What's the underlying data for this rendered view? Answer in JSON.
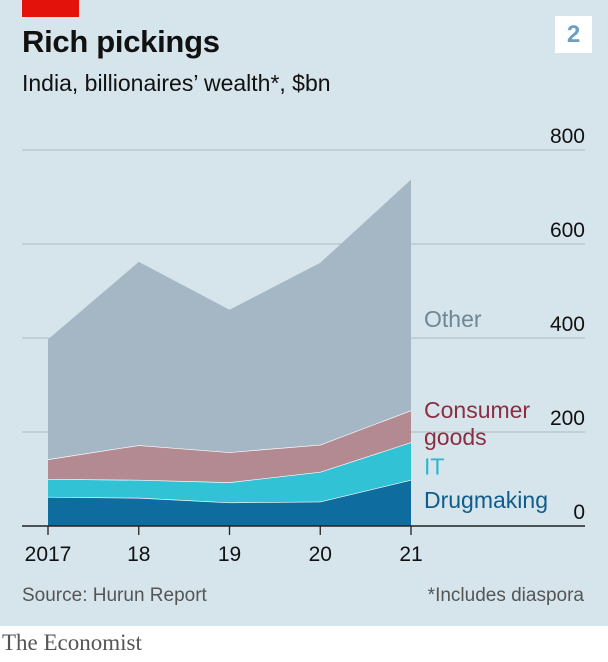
{
  "header": {
    "title": "Rich pickings",
    "subtitle": "India, billionaires’ wealth*, $bn",
    "chart_number": "2"
  },
  "footer": {
    "source": "Source: Hurun Report",
    "footnote": "*Includes diaspora",
    "brand": "The Economist"
  },
  "colors": {
    "Drugmaking": "#0e6c9e",
    "IT": "#31c2d6",
    "Consumer goods": "#b38a92",
    "Other": "#a5b7c4",
    "label_Drugmaking": "#0e5d8c",
    "label_IT": "#2cb6cc",
    "label_Consumer goods": "#8b2e42",
    "label_Other": "#6e8797"
  },
  "chart_data": {
    "type": "area",
    "stacked": true,
    "x": [
      2017,
      2018,
      2019,
      2020,
      2021
    ],
    "x_tick_labels": [
      "2017",
      "18",
      "19",
      "20",
      "21"
    ],
    "series": [
      {
        "name": "Drugmaking",
        "values": [
          62,
          60,
          50,
          52,
          98
        ]
      },
      {
        "name": "IT",
        "values": [
          38,
          38,
          43,
          63,
          80
        ]
      },
      {
        "name": "Consumer goods",
        "values": [
          42,
          74,
          64,
          58,
          68
        ]
      },
      {
        "name": "Other",
        "values": [
          255,
          390,
          303,
          387,
          491
        ]
      }
    ],
    "series_labels": [
      {
        "series": "Other",
        "lines": [
          "Other"
        ]
      },
      {
        "series": "Consumer goods",
        "lines": [
          "Consumer",
          "goods"
        ]
      },
      {
        "series": "IT",
        "lines": [
          "IT"
        ]
      },
      {
        "series": "Drugmaking",
        "lines": [
          "Drugmaking"
        ]
      }
    ],
    "y_ticks": [
      0,
      200,
      400,
      600,
      800
    ],
    "ylim": [
      0,
      800
    ],
    "y_axis_side": "right",
    "grid": true,
    "xlabel": "",
    "ylabel": ""
  }
}
